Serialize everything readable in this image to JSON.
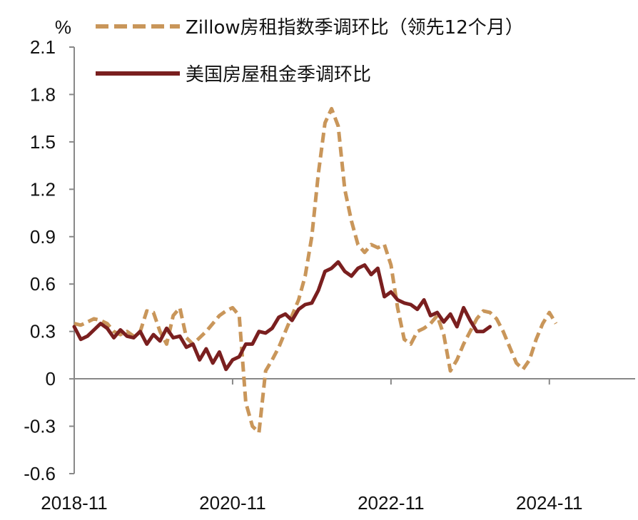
{
  "chart_data": {
    "type": "line",
    "unit": "%",
    "title": "",
    "xlabel": "",
    "ylabel": "%",
    "ylim": [
      -0.6,
      2.1
    ],
    "yticks": [
      "2.1",
      "1.8",
      "1.5",
      "1.2",
      "0.9",
      "0.6",
      "0.3",
      "0",
      "-0.3",
      "-0.6"
    ],
    "xticks": [
      "2018-11",
      "2020-11",
      "2022-11",
      "2024-11"
    ],
    "xlim": [
      "2018-11",
      "2025-12"
    ],
    "grid": false,
    "legend_position": "top",
    "series": [
      {
        "name": "Zillow房租指数季调环比（领先12个月）",
        "color": "#C9965A",
        "style": "dashed",
        "points": [
          [
            "2018-11",
            0.35
          ],
          [
            "2018-12",
            0.34
          ],
          [
            "2019-01",
            0.36
          ],
          [
            "2019-02",
            0.38
          ],
          [
            "2019-03",
            0.37
          ],
          [
            "2019-04",
            0.35
          ],
          [
            "2019-05",
            0.3
          ],
          [
            "2019-06",
            0.28
          ],
          [
            "2019-07",
            0.3
          ],
          [
            "2019-08",
            0.27
          ],
          [
            "2019-09",
            0.3
          ],
          [
            "2019-10",
            0.43
          ],
          [
            "2019-11",
            0.42
          ],
          [
            "2019-12",
            0.3
          ],
          [
            "2020-01",
            0.22
          ],
          [
            "2020-02",
            0.4
          ],
          [
            "2020-03",
            0.45
          ],
          [
            "2020-04",
            0.26
          ],
          [
            "2020-05",
            0.22
          ],
          [
            "2020-06",
            0.26
          ],
          [
            "2020-07",
            0.3
          ],
          [
            "2020-08",
            0.35
          ],
          [
            "2020-09",
            0.4
          ],
          [
            "2020-10",
            0.43
          ],
          [
            "2020-11",
            0.45
          ],
          [
            "2020-12",
            0.4
          ],
          [
            "2021-01",
            -0.15
          ],
          [
            "2021-02",
            -0.3
          ],
          [
            "2021-03",
            -0.34
          ],
          [
            "2021-04",
            0.05
          ],
          [
            "2021-05",
            0.12
          ],
          [
            "2021-06",
            0.2
          ],
          [
            "2021-07",
            0.3
          ],
          [
            "2021-08",
            0.4
          ],
          [
            "2021-09",
            0.5
          ],
          [
            "2021-10",
            0.65
          ],
          [
            "2021-11",
            0.9
          ],
          [
            "2021-12",
            1.3
          ],
          [
            "2022-01",
            1.62
          ],
          [
            "2022-02",
            1.71
          ],
          [
            "2022-03",
            1.6
          ],
          [
            "2022-04",
            1.2
          ],
          [
            "2022-05",
            1.0
          ],
          [
            "2022-06",
            0.85
          ],
          [
            "2022-07",
            0.8
          ],
          [
            "2022-08",
            0.85
          ],
          [
            "2022-09",
            0.83
          ],
          [
            "2022-10",
            0.85
          ],
          [
            "2022-11",
            0.72
          ],
          [
            "2022-12",
            0.45
          ],
          [
            "2023-01",
            0.25
          ],
          [
            "2023-02",
            0.22
          ],
          [
            "2023-03",
            0.3
          ],
          [
            "2023-04",
            0.32
          ],
          [
            "2023-05",
            0.35
          ],
          [
            "2023-06",
            0.4
          ],
          [
            "2023-07",
            0.28
          ],
          [
            "2023-08",
            0.05
          ],
          [
            "2023-09",
            0.12
          ],
          [
            "2023-10",
            0.22
          ],
          [
            "2023-11",
            0.3
          ],
          [
            "2023-12",
            0.38
          ],
          [
            "2024-01",
            0.43
          ],
          [
            "2024-02",
            0.42
          ],
          [
            "2024-03",
            0.38
          ],
          [
            "2024-04",
            0.3
          ],
          [
            "2024-05",
            0.2
          ],
          [
            "2024-06",
            0.1
          ],
          [
            "2024-07",
            0.06
          ],
          [
            "2024-08",
            0.12
          ],
          [
            "2024-09",
            0.25
          ],
          [
            "2024-10",
            0.35
          ],
          [
            "2024-11",
            0.42
          ],
          [
            "2024-12",
            0.35
          ]
        ]
      },
      {
        "name": "美国房屋租金季调环比",
        "color": "#7A1F1F",
        "style": "solid",
        "points": [
          [
            "2018-11",
            0.33
          ],
          [
            "2018-12",
            0.25
          ],
          [
            "2019-01",
            0.27
          ],
          [
            "2019-02",
            0.31
          ],
          [
            "2019-03",
            0.35
          ],
          [
            "2019-04",
            0.32
          ],
          [
            "2019-05",
            0.26
          ],
          [
            "2019-06",
            0.31
          ],
          [
            "2019-07",
            0.27
          ],
          [
            "2019-08",
            0.26
          ],
          [
            "2019-09",
            0.3
          ],
          [
            "2019-10",
            0.22
          ],
          [
            "2019-11",
            0.28
          ],
          [
            "2019-12",
            0.24
          ],
          [
            "2020-01",
            0.32
          ],
          [
            "2020-02",
            0.26
          ],
          [
            "2020-03",
            0.27
          ],
          [
            "2020-04",
            0.2
          ],
          [
            "2020-05",
            0.22
          ],
          [
            "2020-06",
            0.12
          ],
          [
            "2020-07",
            0.19
          ],
          [
            "2020-08",
            0.1
          ],
          [
            "2020-09",
            0.17
          ],
          [
            "2020-10",
            0.06
          ],
          [
            "2020-11",
            0.12
          ],
          [
            "2020-12",
            0.14
          ],
          [
            "2021-01",
            0.22
          ],
          [
            "2021-02",
            0.22
          ],
          [
            "2021-03",
            0.3
          ],
          [
            "2021-04",
            0.29
          ],
          [
            "2021-05",
            0.32
          ],
          [
            "2021-06",
            0.39
          ],
          [
            "2021-07",
            0.41
          ],
          [
            "2021-08",
            0.37
          ],
          [
            "2021-09",
            0.44
          ],
          [
            "2021-10",
            0.47
          ],
          [
            "2021-11",
            0.48
          ],
          [
            "2021-12",
            0.56
          ],
          [
            "2022-01",
            0.68
          ],
          [
            "2022-02",
            0.7
          ],
          [
            "2022-03",
            0.74
          ],
          [
            "2022-04",
            0.68
          ],
          [
            "2022-05",
            0.65
          ],
          [
            "2022-06",
            0.7
          ],
          [
            "2022-07",
            0.72
          ],
          [
            "2022-08",
            0.66
          ],
          [
            "2022-09",
            0.7
          ],
          [
            "2022-10",
            0.52
          ],
          [
            "2022-11",
            0.55
          ],
          [
            "2022-12",
            0.5
          ],
          [
            "2023-01",
            0.48
          ],
          [
            "2023-02",
            0.47
          ],
          [
            "2023-03",
            0.44
          ],
          [
            "2023-04",
            0.5
          ],
          [
            "2023-05",
            0.4
          ],
          [
            "2023-06",
            0.42
          ],
          [
            "2023-07",
            0.36
          ],
          [
            "2023-08",
            0.41
          ],
          [
            "2023-09",
            0.33
          ],
          [
            "2023-10",
            0.45
          ],
          [
            "2023-11",
            0.37
          ],
          [
            "2023-12",
            0.3
          ],
          [
            "2024-01",
            0.3
          ],
          [
            "2024-02",
            0.33
          ]
        ]
      }
    ]
  }
}
